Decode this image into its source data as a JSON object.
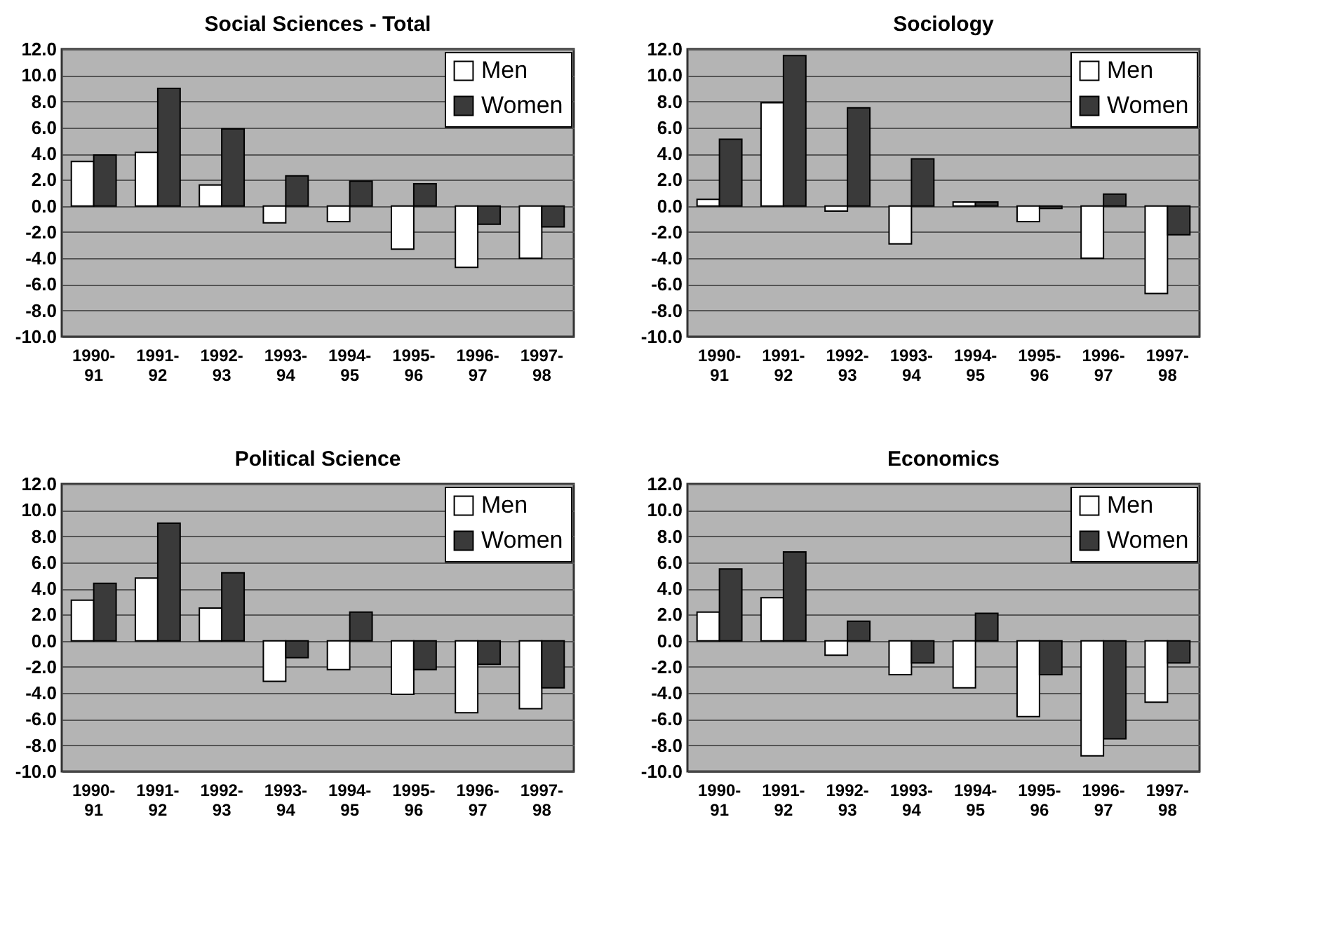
{
  "chart_data": [
    {
      "type": "bar",
      "title": "Social Sciences - Total",
      "categories": [
        "1990-91",
        "1991-92",
        "1992-93",
        "1993-94",
        "1994-95",
        "1995-96",
        "1996-97",
        "1997-98"
      ],
      "series": [
        {
          "name": "Men",
          "color": "#ffffff",
          "values": [
            3.4,
            4.1,
            1.6,
            -1.3,
            -1.2,
            -3.3,
            -4.7,
            -4.0
          ]
        },
        {
          "name": "Women",
          "color": "#3a3a3a",
          "values": [
            3.9,
            9.0,
            5.9,
            2.3,
            1.9,
            1.7,
            -1.4,
            -1.6
          ]
        }
      ],
      "ylim": [
        -10,
        12
      ],
      "yticks": [
        {
          "value": -10,
          "label": "-10.0"
        },
        {
          "value": -8,
          "label": "-8.0"
        },
        {
          "value": -6,
          "label": "-6.0"
        },
        {
          "value": -4,
          "label": "-4.0"
        },
        {
          "value": -2,
          "label": "-2.0"
        },
        {
          "value": 0,
          "label": "0.0"
        },
        {
          "value": 2,
          "label": "2.0"
        },
        {
          "value": 4,
          "label": "4.0"
        },
        {
          "value": 6,
          "label": "6.0"
        },
        {
          "value": 8,
          "label": "8.0"
        },
        {
          "value": 10,
          "label": "10.0"
        },
        {
          "value": 12,
          "label": "12.0"
        }
      ],
      "grid": "y",
      "legend": "top right"
    },
    {
      "type": "bar",
      "title": "Sociology",
      "categories": [
        "1990-91",
        "1991-92",
        "1992-93",
        "1993-94",
        "1994-95",
        "1995-96",
        "1996-97",
        "1997-98"
      ],
      "series": [
        {
          "name": "Men",
          "color": "#ffffff",
          "values": [
            0.5,
            7.9,
            -0.4,
            -2.9,
            0.3,
            -1.2,
            -4.0,
            -6.7
          ]
        },
        {
          "name": "Women",
          "color": "#3a3a3a",
          "values": [
            5.1,
            11.5,
            7.5,
            3.6,
            0.3,
            -0.2,
            0.9,
            -2.2
          ]
        }
      ],
      "ylim": [
        -10,
        12
      ],
      "yticks": [
        {
          "value": -10,
          "label": "-10.0"
        },
        {
          "value": -8,
          "label": "-8.0"
        },
        {
          "value": -6,
          "label": "-6.0"
        },
        {
          "value": -4,
          "label": "-4.0"
        },
        {
          "value": -2,
          "label": "-2.0"
        },
        {
          "value": 0,
          "label": "0.0"
        },
        {
          "value": 2,
          "label": "2.0"
        },
        {
          "value": 4,
          "label": "4.0"
        },
        {
          "value": 6,
          "label": "6.0"
        },
        {
          "value": 8,
          "label": "8.0"
        },
        {
          "value": 10,
          "label": "10.0"
        },
        {
          "value": 12,
          "label": "12.0"
        }
      ],
      "grid": "y",
      "legend": "top right"
    },
    {
      "type": "bar",
      "title": "Political Science",
      "categories": [
        "1990-91",
        "1991-92",
        "1992-93",
        "1993-94",
        "1994-95",
        "1995-96",
        "1996-97",
        "1997-98"
      ],
      "series": [
        {
          "name": "Men",
          "color": "#ffffff",
          "values": [
            3.1,
            4.8,
            2.5,
            -3.1,
            -2.2,
            -4.1,
            -5.5,
            -5.2
          ]
        },
        {
          "name": "Women",
          "color": "#3a3a3a",
          "values": [
            4.4,
            9.0,
            5.2,
            -1.3,
            2.2,
            -2.2,
            -1.8,
            -3.6
          ]
        }
      ],
      "ylim": [
        -10,
        12
      ],
      "yticks": [
        {
          "value": -10,
          "label": "-10.0"
        },
        {
          "value": -8,
          "label": "-8.0"
        },
        {
          "value": -6,
          "label": "-6.0"
        },
        {
          "value": -4,
          "label": "-4.0"
        },
        {
          "value": -2,
          "label": "-2.0"
        },
        {
          "value": 0,
          "label": "0.0"
        },
        {
          "value": 2,
          "label": "2.0"
        },
        {
          "value": 4,
          "label": "4.0"
        },
        {
          "value": 6,
          "label": "6.0"
        },
        {
          "value": 8,
          "label": "8.0"
        },
        {
          "value": 10,
          "label": "10.0"
        },
        {
          "value": 12,
          "label": "12.0"
        }
      ],
      "grid": "y",
      "legend": "top right"
    },
    {
      "type": "bar",
      "title": "Economics",
      "categories": [
        "1990-91",
        "1991-92",
        "1992-93",
        "1993-94",
        "1994-95",
        "1995-96",
        "1996-97",
        "1997-98"
      ],
      "series": [
        {
          "name": "Men",
          "color": "#ffffff",
          "values": [
            2.2,
            3.3,
            -1.1,
            -2.6,
            -3.6,
            -5.8,
            -8.8,
            -4.7
          ]
        },
        {
          "name": "Women",
          "color": "#3a3a3a",
          "values": [
            5.5,
            6.8,
            1.5,
            -1.7,
            2.1,
            -2.6,
            -7.5,
            -1.7
          ]
        }
      ],
      "ylim": [
        -10,
        12
      ],
      "yticks": [
        {
          "value": -10,
          "label": "-10.0"
        },
        {
          "value": -8,
          "label": "-8.0"
        },
        {
          "value": -6,
          "label": "-6.0"
        },
        {
          "value": -4,
          "label": "-4.0"
        },
        {
          "value": -2,
          "label": "-2.0"
        },
        {
          "value": 0,
          "label": "0.0"
        },
        {
          "value": 2,
          "label": "2.0"
        },
        {
          "value": 4,
          "label": "4.0"
        },
        {
          "value": 6,
          "label": "6.0"
        },
        {
          "value": 8,
          "label": "8.0"
        },
        {
          "value": 10,
          "label": "10.0"
        },
        {
          "value": 12,
          "label": "12.0"
        }
      ],
      "grid": "y",
      "legend": "top right"
    }
  ]
}
